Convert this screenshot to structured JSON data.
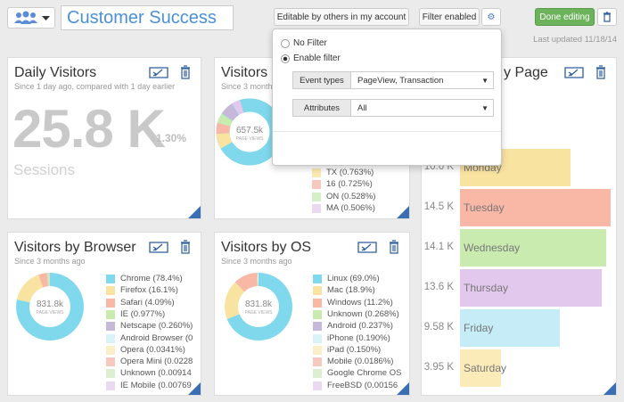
{
  "header": {
    "title": "Customer Success",
    "sharing": "Editable by others in my account",
    "filter_button": "Filter enabled",
    "done_button": "Done editing",
    "last_updated": "Last updated 11/18/14"
  },
  "filter_popover": {
    "options": [
      "No Filter",
      "Enable filter"
    ],
    "selected": 1,
    "fields": [
      {
        "label": "Event types",
        "value": "PageView, Transaction"
      },
      {
        "label": "Attributes",
        "value": "All"
      }
    ]
  },
  "widgets": [
    {
      "title": "Daily Visitors",
      "subtitle": "Since 1 day ago, compared with 1 day earlier",
      "value": "25.8 K",
      "change": "1.30%",
      "metric": "Sessions"
    },
    {
      "title": "Visitors by",
      "subtitle": "Since 3 months ago",
      "total": "657.5k",
      "center_label": "PAGE VIEWS",
      "legend": [
        {
          "label": "TX (0.763%)",
          "color": "#fbe8b0"
        },
        {
          "label": "16 (0.725%)",
          "color": "#f6c8c0"
        },
        {
          "label": "ON (0.528%)",
          "color": "#d5efc6"
        },
        {
          "label": "MA (0.506%)",
          "color": "#ead9f0"
        }
      ]
    },
    {
      "title": "y Page",
      "bars": {
        "categories": [
          "Monday",
          "Tuesday",
          "Wednesday",
          "Thursday",
          "Friday",
          "Saturday"
        ],
        "values": [
          10.6,
          14.5,
          14.1,
          13.6,
          9.58,
          3.95
        ],
        "value_labels": [
          "10.6 K",
          "14.5 K",
          "14.1 K",
          "13.6 K",
          "9.58 K",
          "3.95 K"
        ],
        "colors": [
          "#f9e3a0",
          "#f9b7a5",
          "#c9ebb0",
          "#e3c8ee",
          "#c5ecf7",
          "#fbebb8"
        ]
      }
    },
    {
      "title": "Visitors by Browser",
      "subtitle": "Since 3 months ago",
      "total": "831.8k",
      "center_label": "PAGE VIEWS",
      "legend": [
        {
          "label": "Chrome (78.4%)",
          "value": 78.4,
          "color": "#7fd8ec"
        },
        {
          "label": "Firefox (16.1%)",
          "value": 16.1,
          "color": "#f9e3a0"
        },
        {
          "label": "Safari (4.09%)",
          "value": 4.09,
          "color": "#f9b7a5"
        },
        {
          "label": "IE (0.977%)",
          "value": 0.977,
          "color": "#c9ebb0"
        },
        {
          "label": "Netscape (0.260%)",
          "value": 0.26,
          "color": "#c7b7d8"
        },
        {
          "label": "Android Browser (0",
          "color": "#d9f3f9"
        },
        {
          "label": "Opera (0.0341%)",
          "value": 0.0341,
          "color": "#fbeec8"
        },
        {
          "label": "Opera Mini (0.0228",
          "color": "#f6c8c0"
        },
        {
          "label": "Unknown (0.00914",
          "color": "#dcefd0"
        },
        {
          "label": "IE Mobile (0.00769",
          "color": "#ead9f0"
        }
      ]
    },
    {
      "title": "Visitors by OS",
      "subtitle": "Since 3 months ago",
      "total": "831.8k",
      "center_label": "PAGE VIEWS",
      "legend": [
        {
          "label": "Linux (69.0%)",
          "value": 69.0,
          "color": "#7fd8ec"
        },
        {
          "label": "Mac (18.9%)",
          "value": 18.9,
          "color": "#f9e3a0"
        },
        {
          "label": "Windows (11.2%)",
          "value": 11.2,
          "color": "#f9b7a5"
        },
        {
          "label": "Unknown (0.268%)",
          "value": 0.268,
          "color": "#c9ebb0"
        },
        {
          "label": "Android (0.237%)",
          "value": 0.237,
          "color": "#c7b7d8"
        },
        {
          "label": "iPhone (0.190%)",
          "value": 0.19,
          "color": "#d9f3f9"
        },
        {
          "label": "iPad (0.150%)",
          "value": 0.15,
          "color": "#fbeec8"
        },
        {
          "label": "Mobile (0.0186%)",
          "value": 0.0186,
          "color": "#f6c8c0"
        },
        {
          "label": "Google Chrome OS",
          "color": "#dcefd0"
        },
        {
          "label": "FreeBSD (0.00156",
          "color": "#ead9f0"
        }
      ]
    }
  ]
}
